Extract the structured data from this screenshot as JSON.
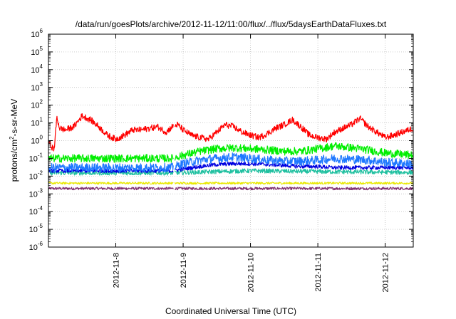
{
  "chart_data": {
    "type": "line",
    "title": "/data/run/goesPlots/archive/2012-11-12/11:00/flux/../flux/5daysEarthDataFluxes.txt",
    "xlabel": "Coordinated Universal Time (UTC)",
    "ylabel": "protons/cm²-s-sr-MeV",
    "ylabel_parts": [
      "protons/cm",
      "2",
      "-s-sr-MeV"
    ],
    "yscale": "log",
    "ylim": [
      1e-06,
      1000000.0
    ],
    "y_ticks": [
      {
        "base": "10",
        "exp": "-6",
        "value": 1e-06
      },
      {
        "base": "10",
        "exp": "-5",
        "value": 1e-05
      },
      {
        "base": "10",
        "exp": "-4",
        "value": 0.0001
      },
      {
        "base": "10",
        "exp": "-3",
        "value": 0.001
      },
      {
        "base": "10",
        "exp": "-2",
        "value": 0.01
      },
      {
        "base": "10",
        "exp": "-1",
        "value": 0.1
      },
      {
        "base": "10",
        "exp": "0",
        "value": 1
      },
      {
        "base": "10",
        "exp": "1",
        "value": 10
      },
      {
        "base": "10",
        "exp": "2",
        "value": 100
      },
      {
        "base": "10",
        "exp": "3",
        "value": 1000
      },
      {
        "base": "10",
        "exp": "4",
        "value": 10000
      },
      {
        "base": "10",
        "exp": "5",
        "value": 100000
      },
      {
        "base": "10",
        "exp": "6",
        "value": 1000000
      }
    ],
    "xlim": [
      "2012-11-07T00:00",
      "2012-11-12T10:00"
    ],
    "x_ticks": [
      {
        "label": "2012-11-8",
        "value": "2012-11-08T00:00"
      },
      {
        "label": "2012-11-9",
        "value": "2012-11-09T00:00"
      },
      {
        "label": "2012-11-10",
        "value": "2012-11-10T00:00"
      },
      {
        "label": "2012-11-11",
        "value": "2012-11-11T00:00"
      },
      {
        "label": "2012-11-12",
        "value": "2012-11-12T00:00"
      }
    ],
    "grid": true,
    "gap": [
      "2012-11-08T20:30",
      "2012-11-08T21:00"
    ],
    "series": [
      {
        "color": "#ff0000",
        "noise": 0.35,
        "x": [
          "2012-11-07T00:00",
          "2012-11-07T01:00",
          "2012-11-07T02:00",
          "2012-11-07T03:00",
          "2012-11-07T04:00",
          "2012-11-07T06:00",
          "2012-11-07T09:00",
          "2012-11-07T12:00",
          "2012-11-07T15:00",
          "2012-11-07T18:00",
          "2012-11-07T21:00",
          "2012-11-08T00:00",
          "2012-11-08T03:00",
          "2012-11-08T06:00",
          "2012-11-08T09:00",
          "2012-11-08T12:00",
          "2012-11-08T15:00",
          "2012-11-08T18:00",
          "2012-11-08T20:00",
          "2012-11-08T22:00",
          "2012-11-09T00:00",
          "2012-11-09T03:00",
          "2012-11-09T06:00",
          "2012-11-09T09:00",
          "2012-11-09T12:00",
          "2012-11-09T15:00",
          "2012-11-09T18:00",
          "2012-11-09T21:00",
          "2012-11-10T00:00",
          "2012-11-10T03:00",
          "2012-11-10T06:00",
          "2012-11-10T09:00",
          "2012-11-10T12:00",
          "2012-11-10T15:00",
          "2012-11-10T18:00",
          "2012-11-10T21:00",
          "2012-11-11T00:00",
          "2012-11-11T03:00",
          "2012-11-11T06:00",
          "2012-11-11T09:00",
          "2012-11-11T12:00",
          "2012-11-11T15:00",
          "2012-11-11T18:00",
          "2012-11-11T21:00",
          "2012-11-12T00:00",
          "2012-11-12T03:00",
          "2012-11-12T06:00",
          "2012-11-12T10:00"
        ],
        "y": [
          1.0,
          0.5,
          0.3,
          20,
          5,
          4,
          6,
          25,
          15,
          6,
          2,
          1.2,
          2,
          4,
          4,
          5,
          6,
          3,
          6,
          8,
          4,
          2,
          1.5,
          1.2,
          3,
          8,
          6,
          3,
          2,
          1.5,
          2.5,
          5,
          8,
          15,
          6,
          2,
          1.5,
          1.2,
          3,
          5,
          8,
          18,
          6,
          3,
          1.5,
          2,
          3,
          5
        ]
      },
      {
        "color": "#00ee00",
        "noise": 0.45,
        "x": [
          "2012-11-07T00:00",
          "2012-11-07T12:00",
          "2012-11-08T00:00",
          "2012-11-08T12:00",
          "2012-11-08T20:00",
          "2012-11-09T00:00",
          "2012-11-09T06:00",
          "2012-11-09T12:00",
          "2012-11-09T18:00",
          "2012-11-10T00:00",
          "2012-11-10T06:00",
          "2012-11-10T12:00",
          "2012-11-10T18:00",
          "2012-11-11T00:00",
          "2012-11-11T06:00",
          "2012-11-11T12:00",
          "2012-11-11T18:00",
          "2012-11-12T00:00",
          "2012-11-12T10:00"
        ],
        "y": [
          0.1,
          0.1,
          0.1,
          0.1,
          0.1,
          0.15,
          0.25,
          0.35,
          0.4,
          0.35,
          0.3,
          0.25,
          0.25,
          0.35,
          0.5,
          0.4,
          0.3,
          0.2,
          0.15
        ]
      },
      {
        "color": "#1e78ff",
        "noise": 0.5,
        "x": [
          "2012-11-07T00:00",
          "2012-11-07T12:00",
          "2012-11-08T00:00",
          "2012-11-08T12:00",
          "2012-11-08T20:00",
          "2012-11-09T00:00",
          "2012-11-09T06:00",
          "2012-11-09T12:00",
          "2012-11-09T18:00",
          "2012-11-10T00:00",
          "2012-11-10T06:00",
          "2012-11-10T12:00",
          "2012-11-10T18:00",
          "2012-11-11T00:00",
          "2012-11-11T06:00",
          "2012-11-11T12:00",
          "2012-11-11T18:00",
          "2012-11-12T00:00",
          "2012-11-12T10:00"
        ],
        "y": [
          0.03,
          0.03,
          0.03,
          0.03,
          0.03,
          0.05,
          0.08,
          0.1,
          0.12,
          0.1,
          0.08,
          0.07,
          0.07,
          0.08,
          0.1,
          0.09,
          0.08,
          0.06,
          0.05
        ]
      },
      {
        "color": "#0000e0",
        "noise": 0.22,
        "x": [
          "2012-11-07T00:00",
          "2012-11-07T12:00",
          "2012-11-08T00:00",
          "2012-11-08T12:00",
          "2012-11-08T20:00",
          "2012-11-09T00:00",
          "2012-11-09T06:00",
          "2012-11-09T12:00",
          "2012-11-09T18:00",
          "2012-11-10T00:00",
          "2012-11-10T06:00",
          "2012-11-10T12:00",
          "2012-11-10T18:00",
          "2012-11-11T00:00",
          "2012-11-11T06:00",
          "2012-11-11T12:00",
          "2012-11-11T18:00",
          "2012-11-12T00:00",
          "2012-11-12T10:00"
        ],
        "y": [
          0.02,
          0.02,
          0.02,
          0.02,
          0.02,
          0.025,
          0.035,
          0.045,
          0.05,
          0.05,
          0.045,
          0.04,
          0.035,
          0.035,
          0.03,
          0.03,
          0.03,
          0.03,
          0.03
        ]
      },
      {
        "color": "#20c0a0",
        "noise": 0.25,
        "x": [
          "2012-11-07T00:00",
          "2012-11-08T00:00",
          "2012-11-08T20:00",
          "2012-11-09T12:00",
          "2012-11-10T00:00",
          "2012-11-11T00:00",
          "2012-11-12T10:00"
        ],
        "y": [
          0.015,
          0.015,
          0.015,
          0.018,
          0.02,
          0.018,
          0.016
        ]
      },
      {
        "color": "#e8e800",
        "noise": 0.12,
        "x": [
          "2012-11-07T00:00",
          "2012-11-12T10:00"
        ],
        "y": [
          0.004,
          0.004
        ]
      },
      {
        "color": "#803070",
        "noise": 0.15,
        "x": [
          "2012-11-07T00:00",
          "2012-11-12T10:00"
        ],
        "y": [
          0.002,
          0.002
        ]
      }
    ]
  }
}
